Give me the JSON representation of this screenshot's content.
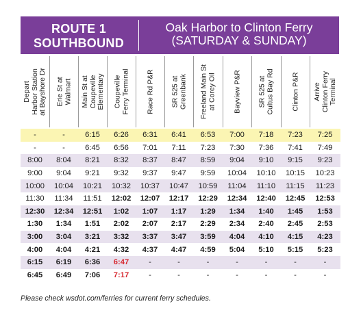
{
  "header": {
    "route_title": "ROUTE 1\nSOUTHBOUND",
    "route_subtitle": "Oak Harbor to Clinton Ferry\n(SATURDAY & SUNDAY)"
  },
  "stops": [
    "Depart\nHarbor Station\nat Bayshore Dr",
    "Erie St at\nWalmart",
    "Main St at\nCoupeville\nElementary",
    "Coupeville\nFerry Terminal",
    "Race Rd P&R",
    "SR 525 at\nGreenbank",
    "Freeland Main St\nat Corey Oil",
    "Bayview P&R",
    "SR 525 at\nCultus Bay Rd",
    "Clinton P&R",
    "Arrive\nClinton Ferry\nTerminal"
  ],
  "trips": [
    {
      "style": "yellow",
      "bold": [],
      "red": [],
      "times": [
        "-",
        "-",
        "6:15",
        "6:26",
        "6:31",
        "6:41",
        "6:53",
        "7:00",
        "7:18",
        "7:23",
        "7:25"
      ]
    },
    {
      "style": "white",
      "bold": [],
      "red": [],
      "times": [
        "-",
        "-",
        "6:45",
        "6:56",
        "7:01",
        "7:11",
        "7:23",
        "7:30",
        "7:36",
        "7:41",
        "7:49"
      ]
    },
    {
      "style": "lav",
      "bold": [],
      "red": [],
      "times": [
        "8:00",
        "8:04",
        "8:21",
        "8:32",
        "8:37",
        "8:47",
        "8:59",
        "9:04",
        "9:10",
        "9:15",
        "9:23"
      ]
    },
    {
      "style": "white",
      "bold": [],
      "red": [],
      "times": [
        "9:00",
        "9:04",
        "9:21",
        "9:32",
        "9:37",
        "9:47",
        "9:59",
        "10:04",
        "10:10",
        "10:15",
        "10:23"
      ]
    },
    {
      "style": "lav",
      "bold": [],
      "red": [],
      "times": [
        "10:00",
        "10:04",
        "10:21",
        "10:32",
        "10:37",
        "10:47",
        "10:59",
        "11:04",
        "11:10",
        "11:15",
        "11:23"
      ]
    },
    {
      "style": "white",
      "bold": [
        3,
        4,
        5,
        6,
        7,
        8,
        9,
        10
      ],
      "red": [],
      "times": [
        "11:30",
        "11:34",
        "11:51",
        "12:02",
        "12:07",
        "12:17",
        "12:29",
        "12:34",
        "12:40",
        "12:45",
        "12:53"
      ]
    },
    {
      "style": "lav",
      "bold": [
        0,
        1,
        2,
        3,
        4,
        5,
        6,
        7,
        8,
        9,
        10
      ],
      "red": [],
      "times": [
        "12:30",
        "12:34",
        "12:51",
        "1:02",
        "1:07",
        "1:17",
        "1:29",
        "1:34",
        "1:40",
        "1:45",
        "1:53"
      ]
    },
    {
      "style": "white",
      "bold": [
        0,
        1,
        2,
        3,
        4,
        5,
        6,
        7,
        8,
        9,
        10
      ],
      "red": [],
      "times": [
        "1:30",
        "1:34",
        "1:51",
        "2:02",
        "2:07",
        "2:17",
        "2:29",
        "2:34",
        "2:40",
        "2:45",
        "2:53"
      ]
    },
    {
      "style": "lav",
      "bold": [
        0,
        1,
        2,
        3,
        4,
        5,
        6,
        7,
        8,
        9,
        10
      ],
      "red": [],
      "times": [
        "3:00",
        "3:04",
        "3:21",
        "3:32",
        "3:37",
        "3:47",
        "3:59",
        "4:04",
        "4:10",
        "4:15",
        "4:23"
      ]
    },
    {
      "style": "white",
      "bold": [
        0,
        1,
        2,
        3,
        4,
        5,
        6,
        7,
        8,
        9,
        10
      ],
      "red": [],
      "times": [
        "4:00",
        "4:04",
        "4:21",
        "4:32",
        "4:37",
        "4:47",
        "4:59",
        "5:04",
        "5:10",
        "5:15",
        "5:23"
      ]
    },
    {
      "style": "lav",
      "bold": [
        0,
        1,
        2
      ],
      "red": [
        3
      ],
      "times": [
        "6:15",
        "6:19",
        "6:36",
        "6:47",
        "-",
        "-",
        "-",
        "-",
        "-",
        "-",
        "-"
      ]
    },
    {
      "style": "white",
      "bold": [
        0,
        1,
        2
      ],
      "red": [
        3
      ],
      "times": [
        "6:45",
        "6:49",
        "7:06",
        "7:17",
        "-",
        "-",
        "-",
        "-",
        "-",
        "-",
        "-"
      ]
    }
  ],
  "footer": {
    "note": "Please check wsdot.com/ferries for current ferry schedules."
  },
  "colors": {
    "banner": "#7a3e99",
    "row_shade": "#e8e1ee",
    "highlight_row": "#fbf5b3",
    "ferry_time": "#d7282f"
  }
}
